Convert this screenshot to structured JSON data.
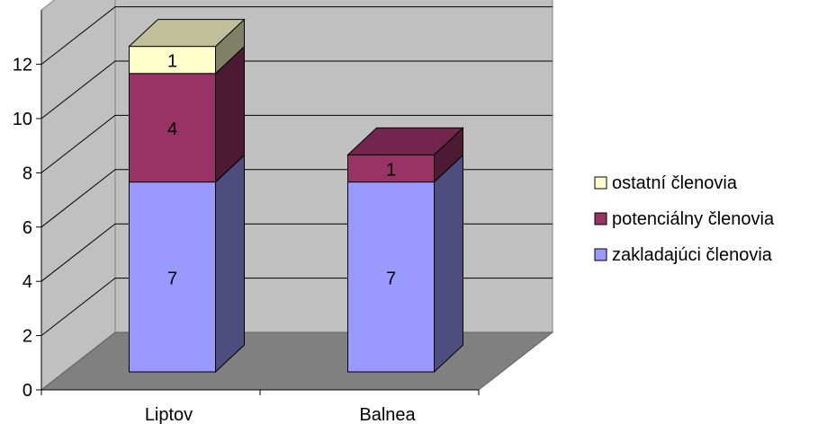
{
  "chart_data": {
    "type": "bar",
    "stacked": true,
    "three_d": true,
    "categories": [
      "Liptov",
      "Balnea"
    ],
    "series": [
      {
        "name": "zakladajúci členovia",
        "values": [
          7,
          7
        ],
        "labels": [
          "7",
          "7"
        ],
        "color": "#9999ff",
        "side_color": "#4d4d80",
        "top_color": "#7373bf"
      },
      {
        "name": "potenciálny členovia",
        "values": [
          4,
          1
        ],
        "labels": [
          "4",
          "1"
        ],
        "color": "#993366",
        "side_color": "#4d1a33",
        "top_color": "#73264d"
      },
      {
        "name": "ostatní členovia",
        "values": [
          1,
          0
        ],
        "labels": [
          "1",
          ""
        ],
        "color": "#ffffcc",
        "side_color": "#808066",
        "top_color": "#bfbf99"
      }
    ],
    "y_ticks": [
      "0",
      "2",
      "4",
      "6",
      "8",
      "10",
      "12"
    ],
    "ylim": [
      0,
      14
    ],
    "grid": true,
    "legend_position": "right",
    "colors": {
      "wall": "#c0c0c0",
      "floor": "#808080",
      "grid": "#000000"
    }
  }
}
